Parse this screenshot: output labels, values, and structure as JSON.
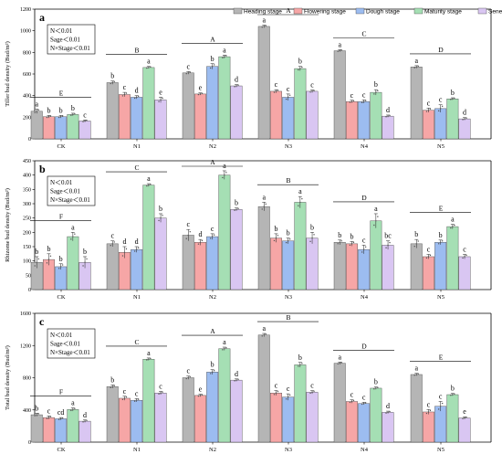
{
  "legend": [
    "Heading stage",
    "Flowering stage",
    "Dough stage",
    "Maturity stage",
    "Senescence stage"
  ],
  "colors": [
    "#b5b5b5",
    "#f6a6a6",
    "#9cbcf0",
    "#a5dfb4",
    "#d9c6f2"
  ],
  "chart_data": [
    {
      "type": "bar",
      "panel_label": "a",
      "stats": [
        "N＜0.01",
        "Sage＜0.01",
        "N×Stage＜0.01"
      ],
      "ylabel": "Tiller bud density (Bud/m²)",
      "ylim": [
        0,
        1200
      ],
      "yticks": [
        0,
        200,
        400,
        600,
        800,
        1000,
        1200
      ],
      "categories": [
        "CK",
        "N1",
        "N2",
        "N3",
        "N4",
        "N5"
      ],
      "group_letters": [
        "E",
        "B",
        "A",
        "A",
        "C",
        "D"
      ],
      "series": [
        {
          "name": "Heading stage",
          "values": [
            255,
            520,
            610,
            1040,
            815,
            665
          ],
          "errors": [
            20,
            15,
            12,
            12,
            10,
            12
          ],
          "letters": [
            "a",
            "b",
            "c",
            "a",
            "a",
            "a"
          ]
        },
        {
          "name": "Flowering stage",
          "values": [
            205,
            410,
            415,
            440,
            345,
            265
          ],
          "errors": [
            12,
            20,
            10,
            15,
            12,
            20
          ],
          "letters": [
            "b",
            "c",
            "e",
            "c",
            "c",
            "c"
          ]
        },
        {
          "name": "Dough stage",
          "values": [
            205,
            385,
            670,
            385,
            345,
            280
          ],
          "errors": [
            12,
            15,
            25,
            30,
            15,
            35
          ],
          "letters": [
            "b",
            "d",
            "b",
            "c",
            "c",
            "c"
          ]
        },
        {
          "name": "Maturity stage",
          "values": [
            225,
            660,
            760,
            650,
            430,
            370
          ],
          "errors": [
            12,
            10,
            15,
            20,
            25,
            10
          ],
          "letters": [
            "b",
            "a",
            "a",
            "b",
            "b",
            "b"
          ]
        },
        {
          "name": "Senescence stage",
          "values": [
            165,
            360,
            490,
            440,
            210,
            185
          ],
          "errors": [
            10,
            25,
            12,
            12,
            10,
            12
          ],
          "letters": [
            "c",
            "e",
            "d",
            "c",
            "d",
            "d"
          ]
        }
      ]
    },
    {
      "type": "bar",
      "panel_label": "b",
      "stats": [
        "N＜0.01",
        "Sage＜0.01",
        "N×Stage＜0.01"
      ],
      "ylabel": "Rhizome bud density (Bud/m²)",
      "ylim": [
        0,
        450
      ],
      "yticks": [
        0,
        50,
        100,
        150,
        200,
        250,
        300,
        350,
        400,
        450
      ],
      "categories": [
        "CK",
        "N1",
        "N2",
        "N3",
        "N4",
        "N5"
      ],
      "group_letters": [
        "F",
        "C",
        "A",
        "B",
        "D",
        "E"
      ],
      "series": [
        {
          "name": "Heading stage",
          "values": [
            95,
            160,
            190,
            290,
            165,
            160
          ],
          "errors": [
            20,
            10,
            20,
            15,
            8,
            15
          ],
          "letters": [
            "b",
            "c",
            "c",
            "a",
            "b",
            "b"
          ]
        },
        {
          "name": "Flowering stage",
          "values": [
            105,
            130,
            165,
            180,
            160,
            115
          ],
          "errors": [
            20,
            20,
            10,
            15,
            8,
            8
          ],
          "letters": [
            "b",
            "d",
            "d",
            "b",
            "b",
            "c"
          ]
        },
        {
          "name": "Dough stage",
          "values": [
            80,
            140,
            185,
            170,
            140,
            165
          ],
          "errors": [
            10,
            10,
            10,
            10,
            15,
            8
          ],
          "letters": [
            "b",
            "d",
            "c",
            "b",
            "c",
            "b"
          ]
        },
        {
          "name": "Maturity stage",
          "values": [
            185,
            365,
            400,
            305,
            240,
            220
          ],
          "errors": [
            15,
            5,
            15,
            20,
            25,
            8
          ],
          "letters": [
            "a",
            "a",
            "a",
            "a",
            "a",
            "a"
          ]
        },
        {
          "name": "Senescence stage",
          "values": [
            95,
            250,
            280,
            180,
            155,
            115
          ],
          "errors": [
            20,
            15,
            5,
            20,
            15,
            8
          ],
          "letters": [
            "b",
            "b",
            "b",
            "b",
            "bc",
            "c"
          ]
        }
      ]
    },
    {
      "type": "bar",
      "panel_label": "c",
      "stats": [
        "N＜0.01",
        "Sage＜0.01",
        "N×Stage＜0.01"
      ],
      "ylabel": "Total bud density (Bud/m²)",
      "ylim": [
        0,
        1600
      ],
      "yticks": [
        0,
        400,
        800,
        1200,
        1600
      ],
      "categories": [
        "CK",
        "N1",
        "N2",
        "N3",
        "N4",
        "N5"
      ],
      "group_letters": [
        "F",
        "C",
        "A",
        "B",
        "D",
        "E"
      ],
      "series": [
        {
          "name": "Heading stage",
          "values": [
            340,
            690,
            800,
            1330,
            980,
            840
          ],
          "errors": [
            20,
            20,
            20,
            20,
            15,
            15
          ],
          "letters": [
            "b",
            "b",
            "c",
            "a",
            "a",
            "a"
          ]
        },
        {
          "name": "Flowering stage",
          "values": [
            305,
            545,
            580,
            610,
            505,
            375
          ],
          "errors": [
            20,
            25,
            15,
            30,
            20,
            30
          ],
          "letters": [
            "c",
            "c",
            "e",
            "c",
            "c",
            "c"
          ]
        },
        {
          "name": "Dough stage",
          "values": [
            290,
            520,
            870,
            560,
            480,
            445
          ],
          "errors": [
            15,
            20,
            30,
            40,
            15,
            60
          ],
          "letters": [
            "cd",
            "c",
            "b",
            "c",
            "c",
            "c"
          ]
        },
        {
          "name": "Maturity stage",
          "values": [
            405,
            1030,
            1160,
            960,
            670,
            590
          ],
          "errors": [
            20,
            15,
            20,
            30,
            15,
            15
          ],
          "letters": [
            "a",
            "a",
            "a",
            "b",
            "b",
            "b"
          ]
        },
        {
          "name": "Senescence stage",
          "values": [
            260,
            610,
            770,
            620,
            370,
            300
          ],
          "errors": [
            15,
            20,
            15,
            20,
            15,
            15
          ],
          "letters": [
            "d",
            "c",
            "d",
            "c",
            "d",
            "e"
          ]
        }
      ]
    }
  ]
}
